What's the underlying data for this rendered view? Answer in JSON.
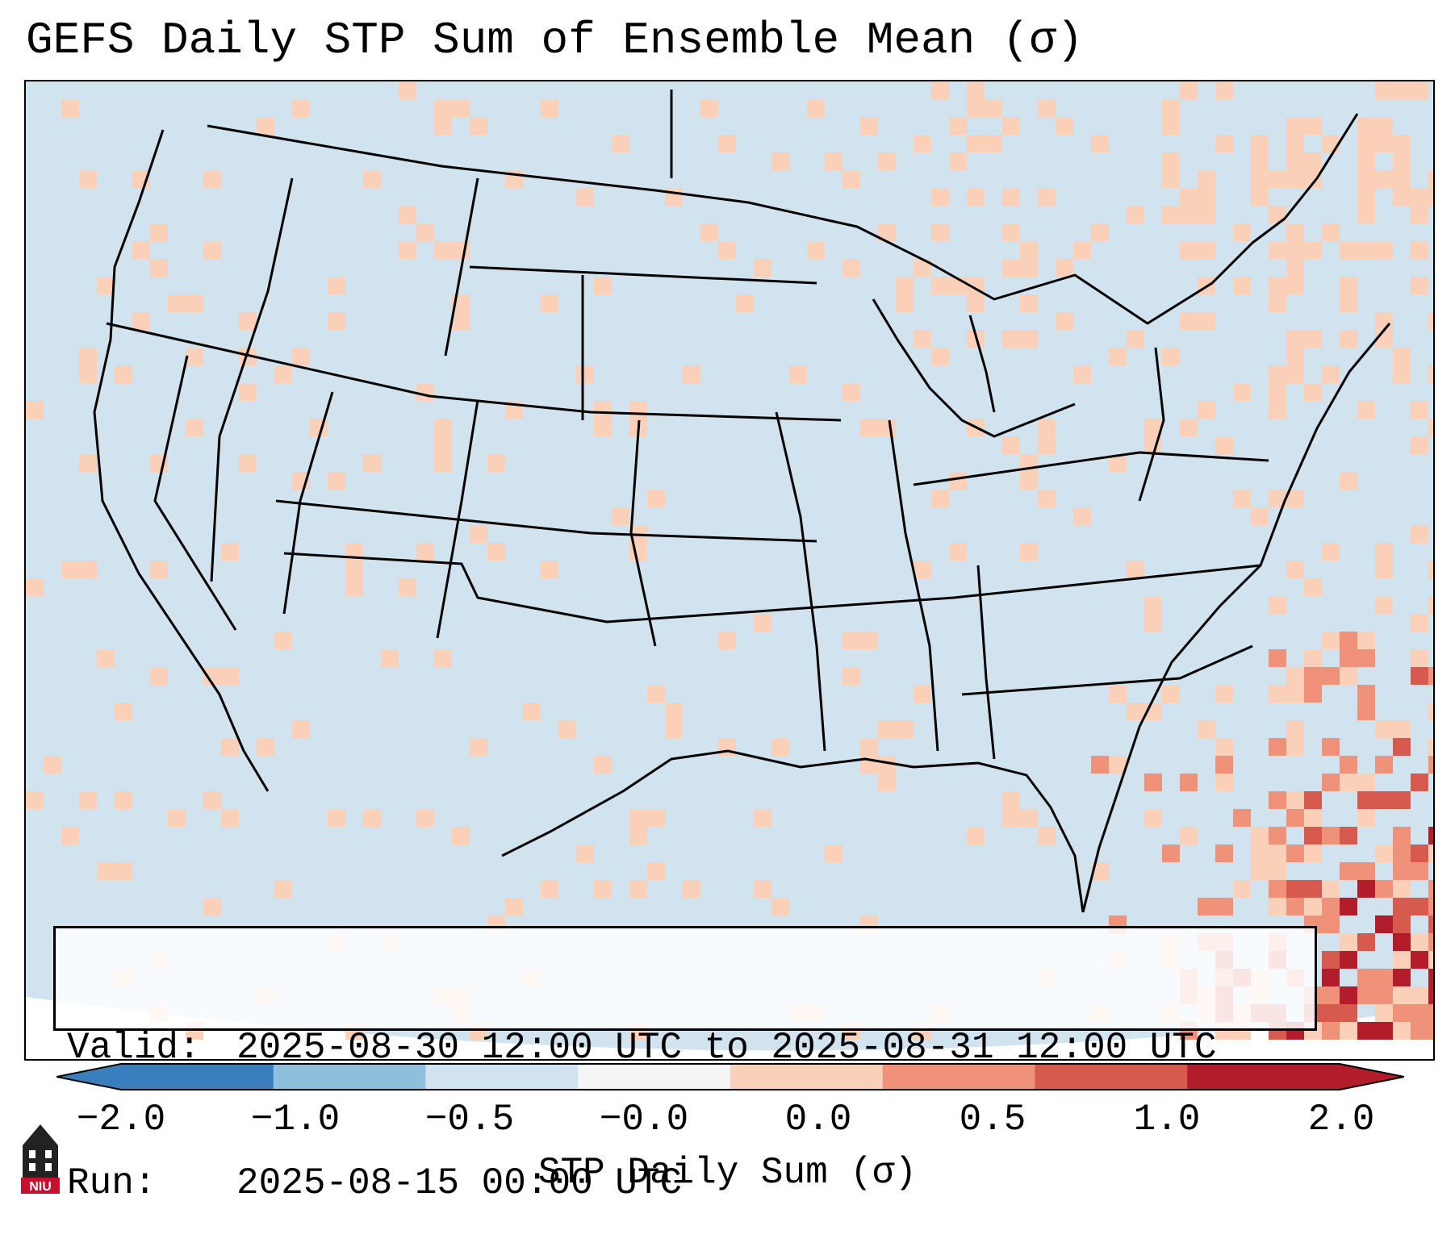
{
  "title": "GEFS Daily STP Sum of Ensemble Mean (σ)",
  "info": {
    "valid_label": "Valid:",
    "valid_value": "2025-08-30 12:00 UTC to 2025-08-31 12:00 UTC",
    "run_label": "Run:",
    "run_value": "2025-08-15 00:00 UTC"
  },
  "colorbar": {
    "label": "STP Daily Sum (σ)",
    "ticks": [
      "−2.0",
      "−1.0",
      "−0.5",
      "−0.0",
      "0.0",
      "0.5",
      "1.0",
      "2.0"
    ],
    "colors": [
      "#3a7fbd",
      "#8ec0de",
      "#d0e3ef",
      "#f5f5f5",
      "#fbd0b8",
      "#f0927a",
      "#d65a4e",
      "#b31c2a"
    ],
    "extend_low_color": "#3a7fbd",
    "extend_high_color": "#b31c2a"
  },
  "map": {
    "background_color": "#d0e3ef",
    "outline_color": "#000000",
    "region": "Contiguous United States"
  },
  "logo": {
    "text": "NIU",
    "color": "#c8102e"
  }
}
